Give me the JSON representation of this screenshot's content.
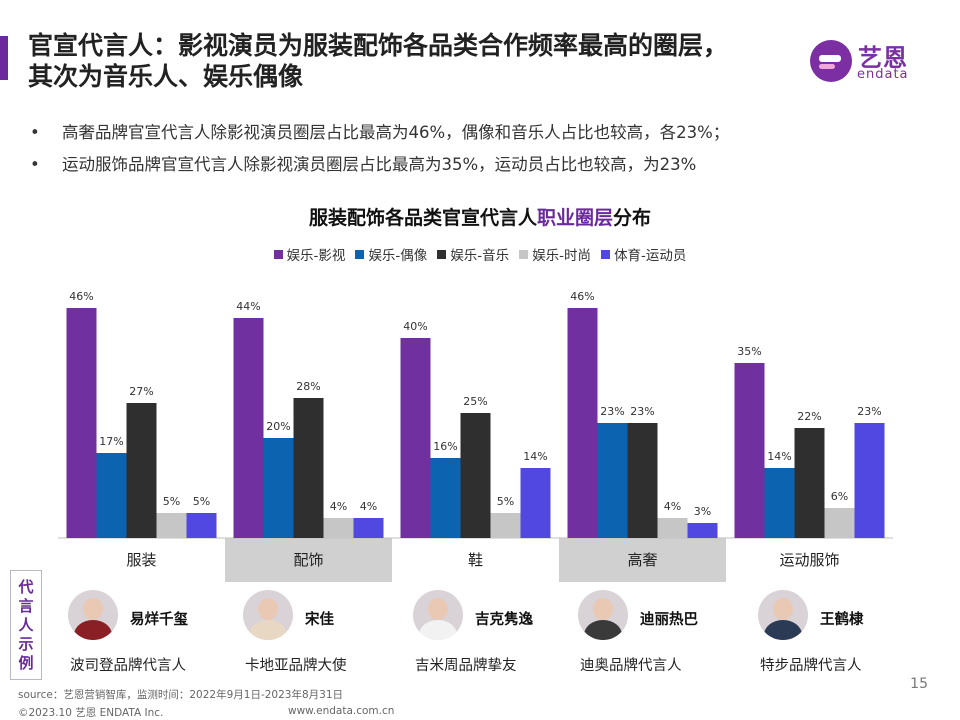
{
  "header": {
    "title_line1": "官宣代言人：影视演员为服装配饰各品类合作频率最高的圈层，",
    "title_line2": "其次为音乐人、娱乐偶像"
  },
  "logo": {
    "text_cn": "艺恩",
    "text_en": "endata"
  },
  "bullets": [
    {
      "marker": "•",
      "text": "高奢品牌官宣代言人除影视演员圈层占比最高为46%，偶像和音乐人占比也较高，各23%；"
    },
    {
      "marker": "•",
      "text": "运动服饰品牌官宣代言人除影视演员圈层占比最高为35%，运动员占比也较高，为23%"
    }
  ],
  "chart_data": {
    "type": "bar",
    "title_part1": "服装配饰各品类官宣代言人",
    "title_highlight": "职业圈层",
    "title_part2": "分布",
    "categories": [
      "服装",
      "配饰",
      "鞋",
      "高奢",
      "运动服饰"
    ],
    "series": [
      {
        "name": "娱乐-影视",
        "color": "#7030a0",
        "values": [
          46,
          44,
          40,
          46,
          35
        ],
        "labels": [
          "46%",
          "44%",
          "40%",
          "46%",
          "35%"
        ]
      },
      {
        "name": "娱乐-偶像",
        "color": "#0c64b0",
        "values": [
          17,
          20,
          16,
          23,
          14
        ],
        "labels": [
          "17%",
          "20%",
          "16%",
          "23%",
          "14%"
        ]
      },
      {
        "name": "娱乐-音乐",
        "color": "#2f2f2f",
        "values": [
          27,
          28,
          25,
          23,
          22
        ],
        "labels": [
          "27%",
          "28%",
          "25%",
          "23%",
          "22%"
        ]
      },
      {
        "name": "娱乐-时尚",
        "color": "#c6c6c6",
        "values": [
          5,
          4,
          5,
          4,
          6
        ],
        "labels": [
          "5%",
          "4%",
          "5%",
          "4%",
          "6%"
        ]
      },
      {
        "name": "体育-运动员",
        "color": "#5048e0",
        "values": [
          5,
          4,
          14,
          3,
          23
        ],
        "labels": [
          "5%",
          "4%",
          "14%",
          "3%",
          "23%"
        ]
      }
    ],
    "category_band_colors": [
      "#ffffff",
      "#d0d0d0",
      "#ffffff",
      "#d0d0d0",
      "#ffffff"
    ],
    "grid": false,
    "legend_position": "top-center"
  },
  "spokespersons": {
    "section_label": [
      "代",
      "言",
      "人",
      "示",
      "例"
    ],
    "items": [
      {
        "name": "易烊千玺",
        "role": "波司登品牌代言人",
        "avatar_icon": "male-portrait",
        "outfit_color": "#8a1f25"
      },
      {
        "name": "宋佳",
        "role": "卡地亚品牌大使",
        "avatar_icon": "female-portrait",
        "outfit_color": "#e8d7c3"
      },
      {
        "name": "吉克隽逸",
        "role": "吉米周品牌挚友",
        "avatar_icon": "female-portrait",
        "outfit_color": "#f2f2f2"
      },
      {
        "name": "迪丽热巴",
        "role": "迪奥品牌代言人",
        "avatar_icon": "female-portrait",
        "outfit_color": "#3a3a3a"
      },
      {
        "name": "王鹤棣",
        "role": "特步品牌代言人",
        "avatar_icon": "male-portrait",
        "outfit_color": "#2b3a55"
      }
    ]
  },
  "footer": {
    "source": "source：艺恩营销智库，监测时间：2022年9月1日-2023年8月31日",
    "copyright": "©2023.10  艺恩 ENDATA Inc.",
    "url": "www.endata.com.cn",
    "page_number": "15"
  }
}
